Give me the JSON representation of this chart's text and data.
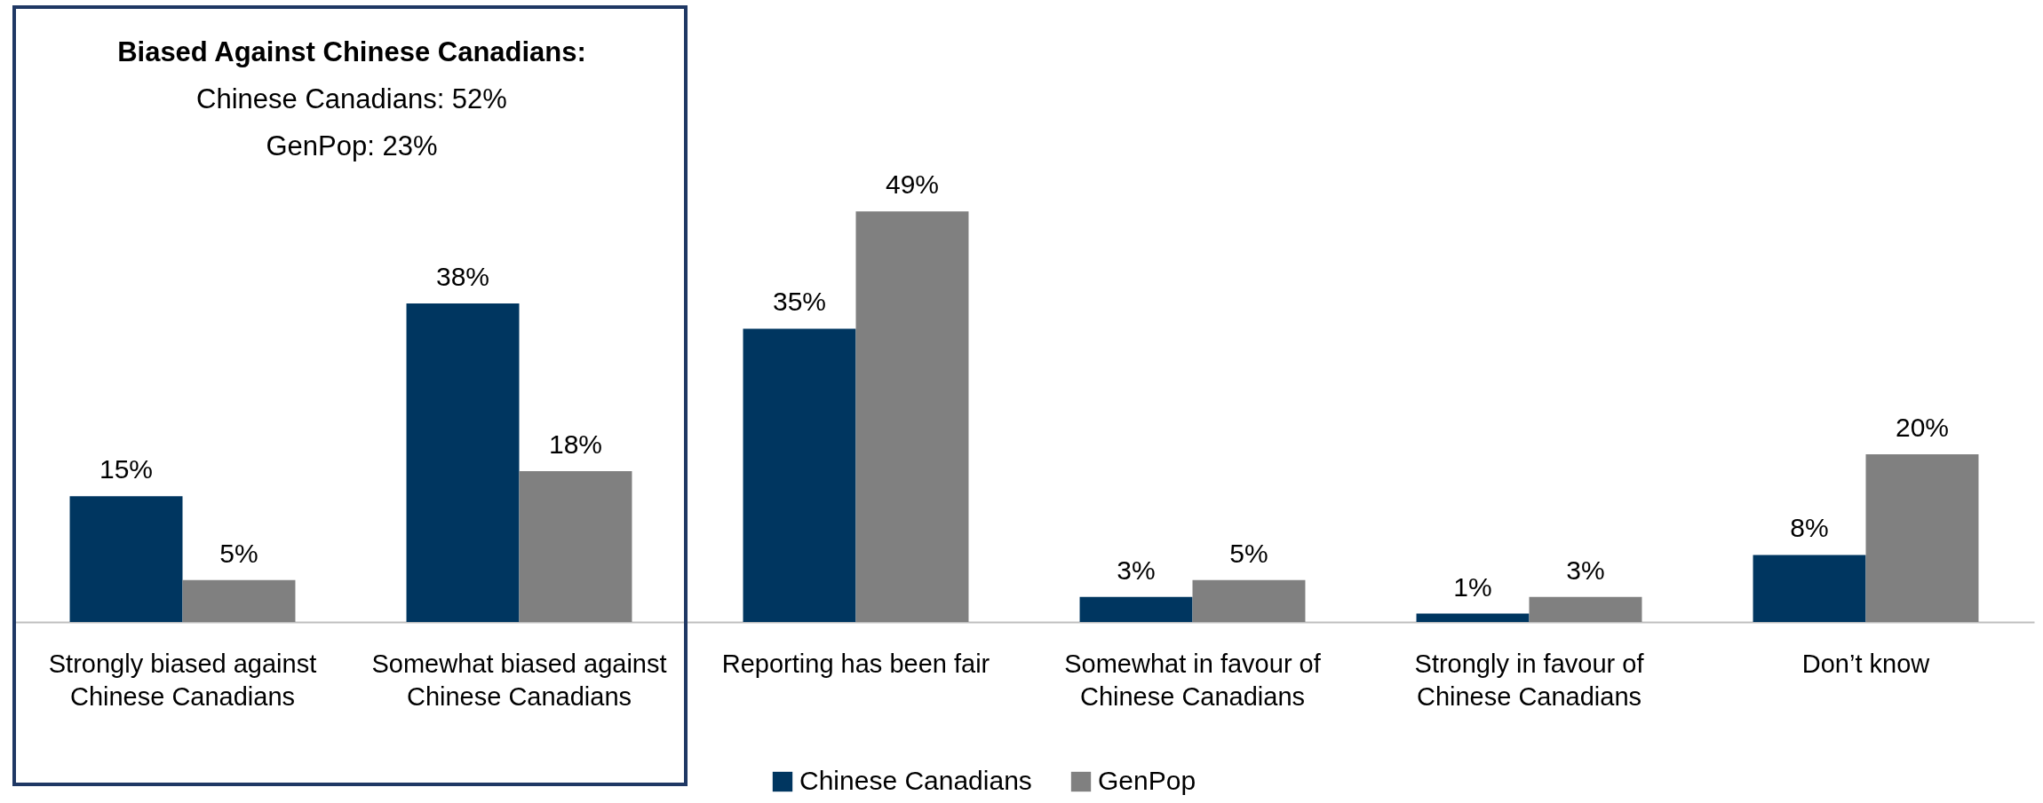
{
  "chart_data": {
    "type": "bar",
    "categories": [
      "Strongly biased against Chinese Canadians",
      "Somewhat biased against Chinese Canadians",
      "Reporting has been fair",
      "Somewhat in favour of Chinese Canadians",
      "Strongly in favour of Chinese Canadians",
      "Don’t know"
    ],
    "series": [
      {
        "name": "Chinese Canadians",
        "color": "#003660",
        "values": [
          15,
          38,
          35,
          3,
          1,
          8
        ],
        "value_labels": [
          "15%",
          "38%",
          "35%",
          "3%",
          "1%",
          "8%"
        ]
      },
      {
        "name": "GenPop",
        "color": "#808080",
        "values": [
          5,
          18,
          49,
          5,
          3,
          20
        ],
        "value_labels": [
          "5%",
          "18%",
          "49%",
          "5%",
          "3%",
          "20%"
        ]
      }
    ],
    "legend": "bottom",
    "annotations": [
      "Biased Against Chinese Canadians:",
      "Chinese Canadians: 52%",
      "GenPop: 23%"
    ]
  }
}
